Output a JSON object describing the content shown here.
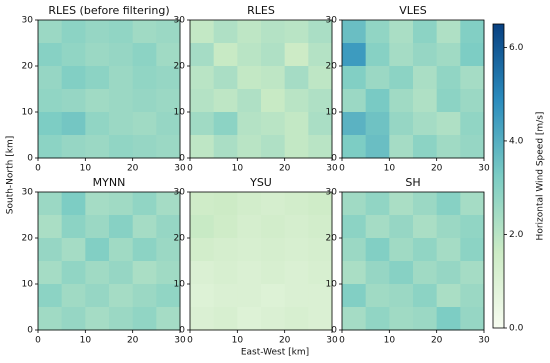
{
  "chart_data": {
    "type": "heatmap",
    "xlabel": "East-West [km]",
    "ylabel": "South-North [km]",
    "xlim": [
      0,
      30
    ],
    "ylim": [
      0,
      30
    ],
    "xticks": [
      0,
      10,
      20,
      30
    ],
    "yticks": [
      0,
      10,
      20,
      30
    ],
    "colors": [
      "#f7fcf0",
      "#ccebc5",
      "#7bccc4",
      "#2b8cbe",
      "#084081"
    ],
    "colorbar": {
      "label": "Horizontal Wind Speed [m/s]",
      "lim": [
        0,
        6.5
      ],
      "ticks": [
        {
          "value": 0,
          "label": "0.0"
        },
        {
          "value": 2,
          "label": "2.0"
        },
        {
          "value": 4,
          "label": "4.0"
        },
        {
          "value": 6,
          "label": "6.0"
        }
      ]
    },
    "panels": [
      {
        "title": "RLES (before filtering)",
        "values": [
          [
            2.6,
            2.9,
            2.7,
            2.8,
            2.5,
            2.6
          ],
          [
            3.0,
            2.8,
            2.6,
            2.7,
            2.9,
            2.5
          ],
          [
            2.7,
            3.1,
            2.9,
            2.6,
            2.8,
            2.7
          ],
          [
            2.8,
            2.7,
            2.5,
            2.6,
            2.7,
            2.6
          ],
          [
            3.2,
            3.4,
            2.8,
            2.6,
            2.5,
            2.7
          ],
          [
            2.9,
            2.7,
            2.6,
            2.8,
            2.7,
            2.6
          ]
        ]
      },
      {
        "title": "RLES",
        "values": [
          [
            1.8,
            2.2,
            1.9,
            2.1,
            2.0,
            2.3
          ],
          [
            2.4,
            1.7,
            2.0,
            2.2,
            1.6,
            2.1
          ],
          [
            2.0,
            2.3,
            1.8,
            1.9,
            2.4,
            1.9
          ],
          [
            2.1,
            1.9,
            2.2,
            1.7,
            2.0,
            2.2
          ],
          [
            2.5,
            2.9,
            2.1,
            2.0,
            1.8,
            2.3
          ],
          [
            1.9,
            2.3,
            2.0,
            2.2,
            1.8,
            2.0
          ]
        ]
      },
      {
        "title": "VLES",
        "values": [
          [
            3.6,
            2.8,
            2.3,
            2.9,
            2.2,
            3.1
          ],
          [
            4.5,
            3.0,
            2.4,
            2.7,
            2.5,
            3.2
          ],
          [
            3.1,
            2.6,
            2.9,
            2.3,
            2.8,
            2.4
          ],
          [
            2.6,
            3.3,
            2.5,
            2.2,
            2.9,
            2.6
          ],
          [
            3.9,
            3.5,
            2.7,
            2.4,
            2.2,
            2.8
          ],
          [
            3.2,
            3.6,
            2.4,
            2.9,
            2.5,
            2.7
          ]
        ]
      },
      {
        "title": "MYNN",
        "values": [
          [
            2.6,
            3.2,
            2.4,
            2.5,
            2.8,
            2.4
          ],
          [
            2.3,
            2.9,
            2.6,
            3.0,
            2.4,
            2.7
          ],
          [
            2.7,
            2.4,
            3.1,
            2.5,
            2.9,
            2.6
          ],
          [
            2.4,
            2.8,
            2.5,
            2.7,
            2.3,
            2.5
          ],
          [
            2.9,
            2.5,
            2.7,
            2.4,
            2.6,
            2.8
          ],
          [
            2.5,
            2.7,
            2.4,
            2.6,
            2.8,
            2.4
          ]
        ]
      },
      {
        "title": "YSU",
        "values": [
          [
            1.5,
            1.6,
            1.4,
            1.3,
            1.4,
            1.5
          ],
          [
            1.7,
            1.5,
            1.3,
            1.4,
            1.3,
            1.4
          ],
          [
            1.4,
            1.3,
            1.2,
            1.3,
            1.2,
            1.3
          ],
          [
            1.1,
            1.2,
            1.1,
            1.2,
            1.1,
            1.2
          ],
          [
            1.0,
            1.1,
            1.1,
            1.0,
            1.1,
            1.1
          ],
          [
            1.1,
            1.2,
            1.0,
            1.1,
            1.2,
            1.1
          ]
        ]
      },
      {
        "title": "SH",
        "values": [
          [
            2.5,
            2.8,
            2.3,
            2.6,
            3.0,
            2.4
          ],
          [
            2.9,
            2.4,
            2.7,
            2.3,
            2.6,
            2.8
          ],
          [
            2.6,
            3.1,
            2.5,
            2.8,
            2.4,
            2.9
          ],
          [
            2.3,
            2.7,
            3.0,
            2.5,
            2.7,
            2.4
          ],
          [
            3.1,
            2.5,
            2.6,
            2.9,
            2.3,
            2.6
          ],
          [
            2.4,
            2.8,
            2.5,
            2.6,
            3.2,
            2.7
          ]
        ]
      }
    ]
  }
}
